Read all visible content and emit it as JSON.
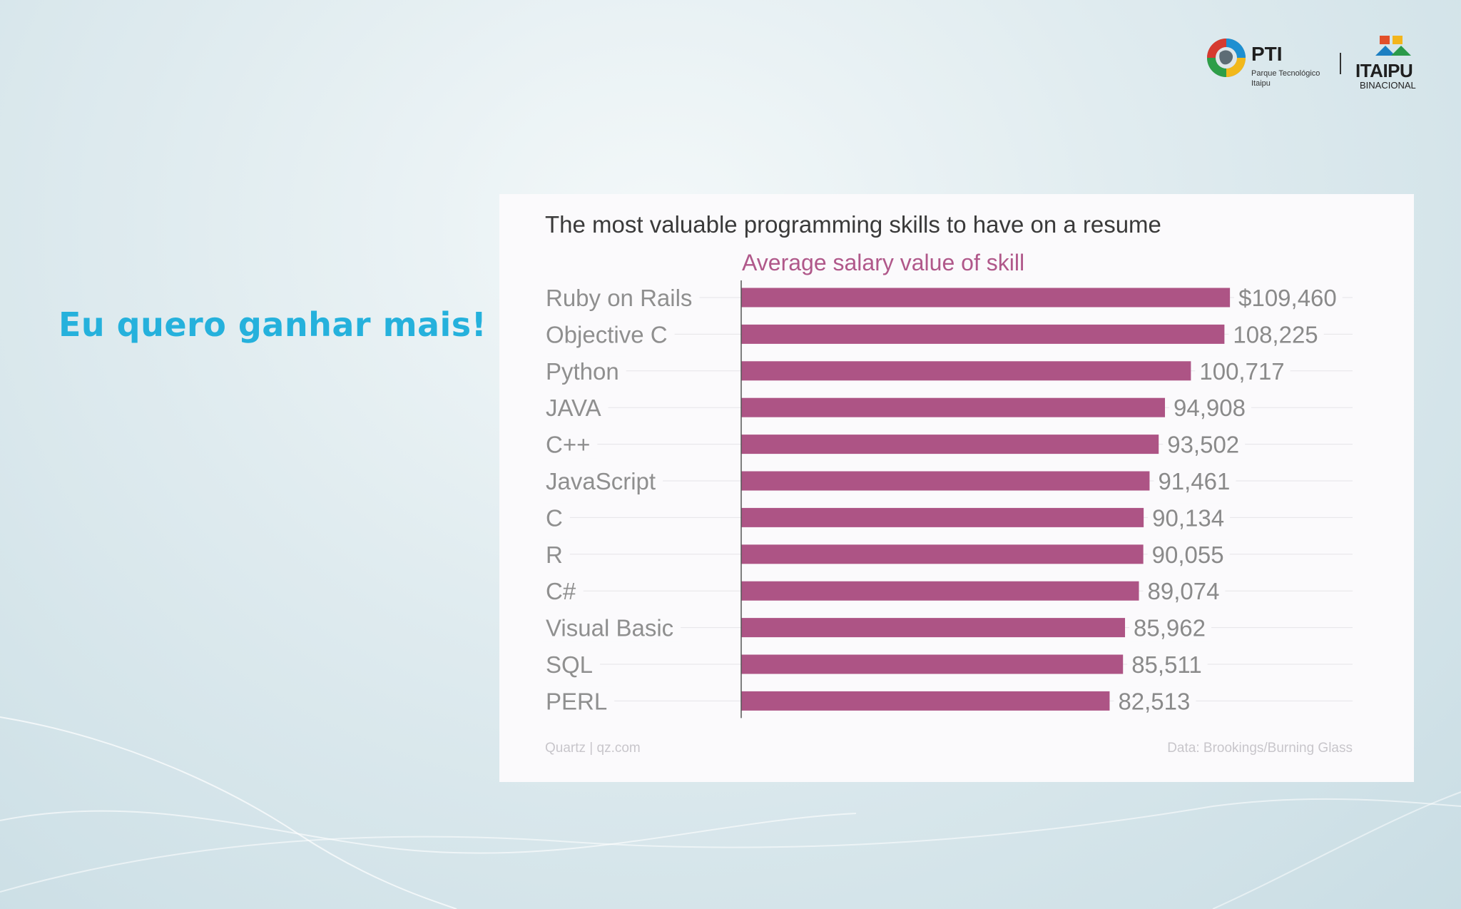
{
  "slide": {
    "heading": "Eu quero ganhar mais!"
  },
  "logos": {
    "pti_name": "PTI",
    "pti_subtitle_1": "Parque Tecnológico",
    "pti_subtitle_2": "Itaipu",
    "itaipu_name": "ITAIPU",
    "itaipu_subtitle": "BINACIONAL"
  },
  "colors": {
    "heading": "#25b1dc",
    "bar": "#ad5485",
    "subtitle": "#b0588a"
  },
  "chart_data": {
    "type": "bar",
    "orientation": "horizontal",
    "title": "The most valuable programming skills to have on a resume",
    "subtitle": "Average salary value of skill",
    "categories": [
      "Ruby on Rails",
      "Objective C",
      "Python",
      "JAVA",
      "C++",
      "JavaScript",
      "C",
      "R",
      "C#",
      "Visual Basic",
      "SQL",
      "PERL"
    ],
    "values": [
      109460,
      108225,
      100717,
      94908,
      93502,
      91461,
      90134,
      90055,
      89074,
      85962,
      85511,
      82513
    ],
    "value_labels": [
      "$109,460",
      "108,225",
      "100,717",
      "94,908",
      "93,502",
      "91,461",
      "90,134",
      "90,055",
      "89,074",
      "85,962",
      "85,511",
      "82,513"
    ],
    "xlim": [
      0,
      139000
    ],
    "source": "Quartz | qz.com",
    "credit": "Data: Brookings/Burning Glass"
  }
}
